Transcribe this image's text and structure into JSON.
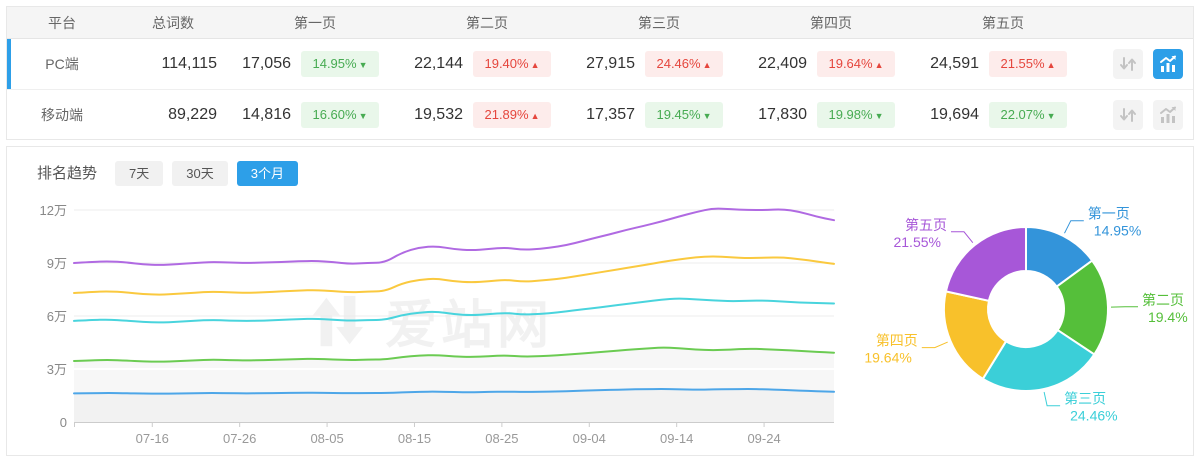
{
  "colors": {
    "accent_blue": "#2d9fe8",
    "up_red": "#e5463d",
    "up_red_bg": "#fdeceb",
    "down_green": "#47ab52",
    "down_green_bg": "#e9f7ea"
  },
  "icons": {
    "sort": "up-down-arrows",
    "chart": "bar-chart-trend",
    "badge_up": "▲",
    "badge_down": "▼"
  },
  "table": {
    "headers": {
      "platform": "平台",
      "total": "总词数",
      "pages": [
        "第一页",
        "第二页",
        "第三页",
        "第四页",
        "第五页"
      ]
    },
    "rows": [
      {
        "platform": "PC端",
        "total": "114,115",
        "selected": true,
        "chart_button_active": true,
        "pages": [
          {
            "count": "17,056",
            "pct": "14.95%",
            "dir": "down"
          },
          {
            "count": "22,144",
            "pct": "19.40%",
            "dir": "up"
          },
          {
            "count": "27,915",
            "pct": "24.46%",
            "dir": "up"
          },
          {
            "count": "22,409",
            "pct": "19.64%",
            "dir": "up"
          },
          {
            "count": "24,591",
            "pct": "21.55%",
            "dir": "up"
          }
        ]
      },
      {
        "platform": "移动端",
        "total": "89,229",
        "selected": false,
        "chart_button_active": false,
        "pages": [
          {
            "count": "14,816",
            "pct": "16.60%",
            "dir": "down"
          },
          {
            "count": "19,532",
            "pct": "21.89%",
            "dir": "up"
          },
          {
            "count": "17,357",
            "pct": "19.45%",
            "dir": "down"
          },
          {
            "count": "17,830",
            "pct": "19.98%",
            "dir": "down"
          },
          {
            "count": "19,694",
            "pct": "22.07%",
            "dir": "down"
          }
        ]
      }
    ]
  },
  "trend": {
    "title": "排名趋势",
    "tabs": [
      {
        "label": "7天",
        "active": false
      },
      {
        "label": "30天",
        "active": false
      },
      {
        "label": "3个月",
        "active": true
      }
    ]
  },
  "watermark": "爱站网",
  "chart_data": [
    {
      "type": "line",
      "title": "排名趋势",
      "y_unit": "万",
      "ylim": [
        0,
        12.7
      ],
      "grid": true,
      "y_ticks": [
        {
          "label": "0",
          "value": 0
        },
        {
          "label": "3万",
          "value": 3
        },
        {
          "label": "6万",
          "value": 6
        },
        {
          "label": "9万",
          "value": 9
        },
        {
          "label": "12万",
          "value": 12
        }
      ],
      "x_ticks": [
        {
          "label": "07-16",
          "pos": 0.103
        },
        {
          "label": "07-26",
          "pos": 0.218
        },
        {
          "label": "08-05",
          "pos": 0.333
        },
        {
          "label": "08-15",
          "pos": 0.448
        },
        {
          "label": "08-25",
          "pos": 0.563
        },
        {
          "label": "09-04",
          "pos": 0.678
        },
        {
          "label": "09-14",
          "pos": 0.793
        },
        {
          "label": "09-24",
          "pos": 0.908
        }
      ],
      "series": [
        {
          "name": "第一页",
          "color": "#4da6e8",
          "area": true,
          "area_color": "rgba(0,0,0,0.018)",
          "values": [
            1.62,
            1.63,
            1.64,
            1.63,
            1.61,
            1.6,
            1.61,
            1.63,
            1.64,
            1.63,
            1.62,
            1.63,
            1.64,
            1.65,
            1.66,
            1.64,
            1.63,
            1.64,
            1.64,
            1.68,
            1.71,
            1.72,
            1.69,
            1.68,
            1.7,
            1.72,
            1.7,
            1.71,
            1.73,
            1.76,
            1.79,
            1.82,
            1.84,
            1.86,
            1.87,
            1.85,
            1.83,
            1.84,
            1.86,
            1.87,
            1.85,
            1.82,
            1.78,
            1.74,
            1.71
          ]
        },
        {
          "name": "第二页",
          "color": "#6bcb52",
          "area": true,
          "area_color": "rgba(0,0,0,0.032)",
          "values": [
            3.45,
            3.49,
            3.52,
            3.48,
            3.43,
            3.41,
            3.44,
            3.49,
            3.53,
            3.5,
            3.48,
            3.5,
            3.53,
            3.56,
            3.58,
            3.54,
            3.5,
            3.53,
            3.54,
            3.68,
            3.76,
            3.79,
            3.71,
            3.68,
            3.72,
            3.77,
            3.7,
            3.73,
            3.78,
            3.85,
            3.92,
            4.0,
            4.08,
            4.15,
            4.22,
            4.18,
            4.1,
            4.06,
            4.1,
            4.15,
            4.12,
            4.08,
            4.02,
            3.97,
            3.92
          ]
        },
        {
          "name": "第三页",
          "color": "#49d4dd",
          "area": false,
          "values": [
            5.72,
            5.77,
            5.8,
            5.74,
            5.66,
            5.63,
            5.67,
            5.73,
            5.78,
            5.74,
            5.72,
            5.74,
            5.78,
            5.82,
            5.85,
            5.79,
            5.73,
            5.77,
            5.78,
            6.05,
            6.2,
            6.25,
            6.1,
            6.04,
            6.1,
            6.18,
            6.08,
            6.12,
            6.2,
            6.32,
            6.44,
            6.56,
            6.68,
            6.8,
            6.92,
            7.0,
            6.94,
            6.88,
            6.84,
            6.86,
            6.88,
            6.82,
            6.76,
            6.74,
            6.71
          ]
        },
        {
          "name": "第四页",
          "color": "#fac93f",
          "area": false,
          "values": [
            7.3,
            7.36,
            7.4,
            7.34,
            7.24,
            7.2,
            7.26,
            7.32,
            7.38,
            7.34,
            7.31,
            7.34,
            7.39,
            7.44,
            7.47,
            7.41,
            7.34,
            7.38,
            7.4,
            7.85,
            8.06,
            8.12,
            7.96,
            7.9,
            7.96,
            8.06,
            7.94,
            8.0,
            8.1,
            8.24,
            8.4,
            8.56,
            8.72,
            8.88,
            9.05,
            9.2,
            9.32,
            9.38,
            9.32,
            9.28,
            9.3,
            9.32,
            9.22,
            9.08,
            8.95
          ]
        },
        {
          "name": "第五页",
          "color": "#b06ae2",
          "area": false,
          "values": [
            9.0,
            9.06,
            9.1,
            9.04,
            8.92,
            8.88,
            8.94,
            9.0,
            9.06,
            9.02,
            9.0,
            9.02,
            9.06,
            9.1,
            9.12,
            9.05,
            8.95,
            9.0,
            9.02,
            9.6,
            9.88,
            9.95,
            9.78,
            9.72,
            9.78,
            9.88,
            9.74,
            9.8,
            9.92,
            10.12,
            10.38,
            10.62,
            10.88,
            11.1,
            11.35,
            11.62,
            11.88,
            12.1,
            12.05,
            12.0,
            12.0,
            12.05,
            11.9,
            11.62,
            11.42
          ]
        }
      ]
    },
    {
      "type": "donut",
      "labels": [
        "第一页",
        "第二页",
        "第三页",
        "第四页",
        "第五页"
      ],
      "values": [
        14.95,
        19.4,
        24.46,
        19.64,
        21.55
      ],
      "display": [
        "14.95%",
        "19.4%",
        "24.46%",
        "19.64%",
        "21.55%"
      ],
      "colors": [
        "#3394da",
        "#55bf3a",
        "#3bcfd8",
        "#f8c12b",
        "#a757d8"
      ],
      "start_angle": "top",
      "direction": "clockwise"
    }
  ]
}
